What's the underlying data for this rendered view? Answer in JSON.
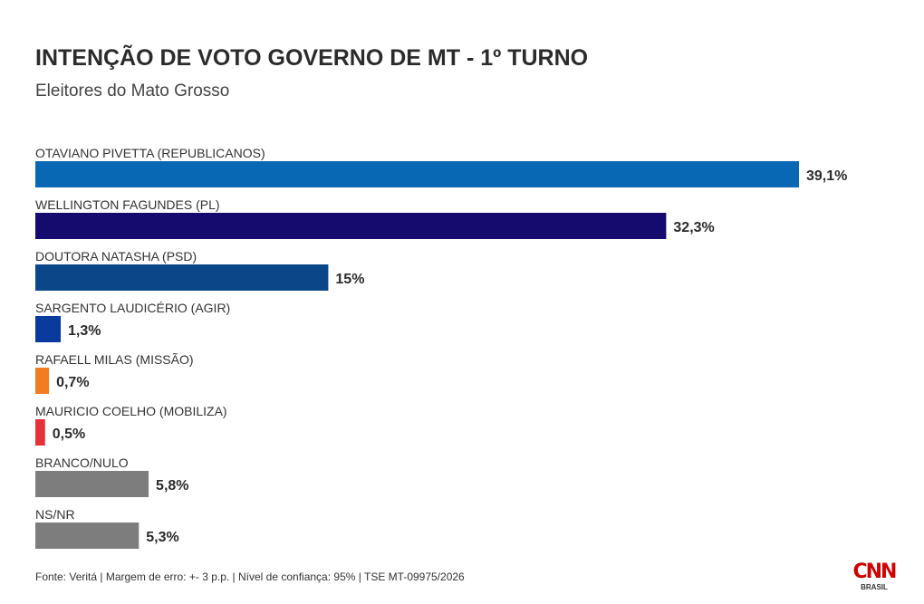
{
  "chart_data": {
    "type": "bar",
    "orientation": "horizontal",
    "title": "INTENÇÃO DE VOTO GOVERNO DE MT - 1º TURNO",
    "subtitle": "Eleitores do Mato Grosso",
    "categories": [
      "OTAVIANO PIVETTA (REPUBLICANOS)",
      "WELLINGTON FAGUNDES (PL)",
      "DOUTORA NATASHA (PSD)",
      "SARGENTO LAUDICÉRIO (AGIR)",
      "RAFAELL MILAS (MISSÃO)",
      "MAURICIO COELHO (MOBILIZA)",
      "BRANCO/NULO",
      "NS/NR"
    ],
    "values": [
      39.1,
      32.3,
      15,
      1.3,
      0.7,
      0.5,
      5.8,
      5.3
    ],
    "value_labels": [
      "39,1%",
      "32,3%",
      "15%",
      "1,3%",
      "0,7%",
      "0,5%",
      "5,8%",
      "5,3%"
    ],
    "colors": [
      "#0868b3",
      "#150a6e",
      "#0b4788",
      "#0a3a9e",
      "#f47c20",
      "#e53238",
      "#7d7d7d",
      "#7d7d7d"
    ],
    "xlim": [
      0,
      39.1
    ],
    "grid": false,
    "legend": "none"
  },
  "footer": {
    "source": "Fonte: Veritá | Margem de erro: +- 3 p.p. | Nível de confiança: 95% | TSE MT-09975/2026"
  },
  "logo": {
    "main": "CNN",
    "sub": "BRASIL"
  }
}
